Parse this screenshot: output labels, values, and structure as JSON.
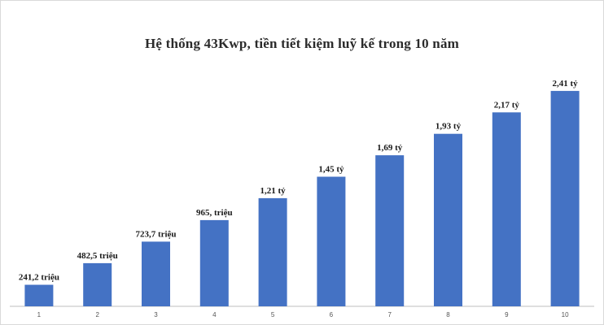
{
  "chart_data": {
    "type": "bar",
    "title": "Hệ thống 43Kwp, tiền tiết kiệm luỹ kế trong 10 năm",
    "xlabel": "",
    "ylabel": "",
    "categories": [
      "1",
      "2",
      "3",
      "4",
      "5",
      "6",
      "7",
      "8",
      "9",
      "10"
    ],
    "values": [
      241.2,
      482.5,
      723.7,
      965,
      1210,
      1450,
      1690,
      1930,
      2170,
      2410
    ],
    "data_labels": [
      "241,2 triệu",
      "482,5 triệu",
      "723,7 triệu",
      "965, triệu",
      "1,21 tỷ",
      "1,45 tỷ",
      "1,69 tỷ",
      "1,93 tỷ",
      "2,17 tỷ",
      "2,41 tỷ"
    ],
    "ylim": [
      0,
      2700
    ],
    "grid": false,
    "legend": "none",
    "colors": {
      "bar": "#4472c4"
    }
  }
}
